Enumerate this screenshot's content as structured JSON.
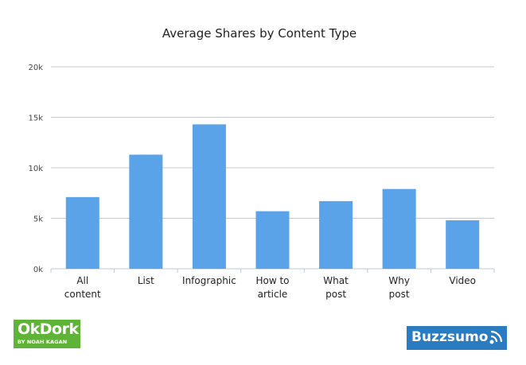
{
  "chart_data": {
    "type": "bar",
    "title": "Average Shares by Content Type",
    "categories": [
      [
        "All",
        "content"
      ],
      [
        "List"
      ],
      [
        "Infographic"
      ],
      [
        "How to",
        "article"
      ],
      [
        "What",
        "post"
      ],
      [
        "Why",
        "post"
      ],
      [
        "Video"
      ]
    ],
    "values": [
      7100,
      11300,
      14300,
      5700,
      6700,
      7900,
      4800
    ],
    "ylim": [
      0,
      20000
    ],
    "yticks": [
      0,
      5000,
      10000,
      15000,
      20000
    ],
    "ytick_labels": [
      "0k",
      "5k",
      "10k",
      "15k",
      "20k"
    ],
    "grid": true,
    "legend": "none",
    "bar_color": "#5ba3e8"
  },
  "logos": {
    "okdork": {
      "main": "OkDork",
      "sub": "BY NOAH KAGAN",
      "color": "#5fb336"
    },
    "buzzsumo": {
      "text": "Buzzsumo",
      "color": "#2b7bc0"
    }
  }
}
